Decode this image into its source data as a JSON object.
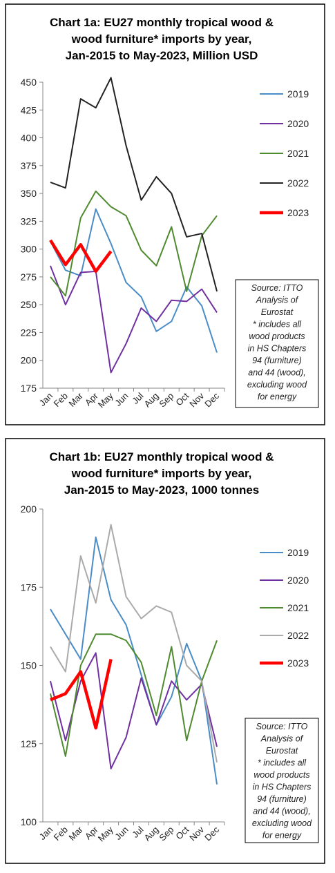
{
  "chart_data": [
    {
      "type": "line",
      "title": [
        "Chart 1a: EU27 monthly tropical wood &",
        "wood furniture* imports by year,",
        "Jan-2015 to May-2023, Million USD"
      ],
      "categories": [
        "Jan",
        "Feb",
        "Mar",
        "Apr",
        "May",
        "Jun",
        "Jul",
        "Aug",
        "Sep",
        "Oct",
        "Nov",
        "Dec"
      ],
      "series": [
        {
          "name": "2019",
          "color": "#4a8cc6",
          "width": 2,
          "values": [
            307,
            281,
            276,
            336,
            305,
            270,
            257,
            226,
            235,
            266,
            249,
            207
          ]
        },
        {
          "name": "2020",
          "color": "#7030a0",
          "width": 2,
          "values": [
            285,
            250,
            279,
            280,
            189,
            215,
            247,
            235,
            254,
            253,
            264,
            243
          ]
        },
        {
          "name": "2021",
          "color": "#4e8a2e",
          "width": 2,
          "values": [
            275,
            258,
            328,
            352,
            338,
            330,
            299,
            285,
            320,
            262,
            312,
            330
          ]
        },
        {
          "name": "2022",
          "color": "#222222",
          "width": 2,
          "values": [
            360,
            355,
            435,
            427,
            454,
            393,
            344,
            365,
            350,
            311,
            314,
            262
          ]
        },
        {
          "name": "2023",
          "color": "#ff0000",
          "width": 4.5,
          "values": [
            308,
            286,
            304,
            280,
            298,
            null,
            null,
            null,
            null,
            null,
            null,
            null
          ]
        }
      ],
      "ylim": [
        175,
        450
      ],
      "yticks": [
        175,
        200,
        225,
        250,
        275,
        300,
        325,
        350,
        375,
        400,
        425,
        450
      ],
      "note": [
        "Source: ITTO",
        "Analysis of",
        "Eurostat",
        "* includes all",
        "wood products",
        "in HS Chapters",
        "94 (furniture)",
        "and 44 (wood),",
        "excluding wood",
        "for energy"
      ]
    },
    {
      "type": "line",
      "title": [
        "Chart 1b: EU27 monthly tropical wood &",
        "wood furniture* imports by year,",
        "Jan-2015 to May-2023, 1000 tonnes"
      ],
      "categories": [
        "Jan",
        "Feb",
        "Mar",
        "Apr",
        "May",
        "Jun",
        "Jul",
        "Aug",
        "Sep",
        "Oct",
        "Nov",
        "Dec"
      ],
      "series": [
        {
          "name": "2019",
          "color": "#4a8cc6",
          "width": 2,
          "values": [
            168,
            160,
            152,
            191,
            171,
            163,
            147,
            131,
            140,
            157,
            145,
            112
          ]
        },
        {
          "name": "2020",
          "color": "#7030a0",
          "width": 2,
          "values": [
            145,
            126,
            145,
            154,
            117,
            127,
            146,
            131,
            145,
            139,
            144,
            124
          ]
        },
        {
          "name": "2021",
          "color": "#4e8a2e",
          "width": 2,
          "values": [
            141,
            121,
            150,
            160,
            160,
            158,
            151,
            134,
            156,
            126,
            145,
            158
          ]
        },
        {
          "name": "2022",
          "color": "#aaaaaa",
          "width": 2,
          "values": [
            156,
            148,
            185,
            170,
            195,
            172,
            165,
            169,
            167,
            150,
            145,
            119
          ]
        },
        {
          "name": "2023",
          "color": "#ff0000",
          "width": 4.5,
          "values": [
            139,
            141,
            148,
            130,
            152,
            null,
            null,
            null,
            null,
            null,
            null,
            null
          ]
        }
      ],
      "ylim": [
        100,
        200
      ],
      "yticks": [
        100,
        125,
        150,
        175,
        200
      ],
      "note": [
        "Source: ITTO",
        "Analysis of",
        "Eurostat",
        "* includes all",
        "wood products",
        "in HS Chapters",
        "94 (furniture)",
        "and 44 (wood),",
        "excluding wood",
        "for energy"
      ]
    }
  ]
}
